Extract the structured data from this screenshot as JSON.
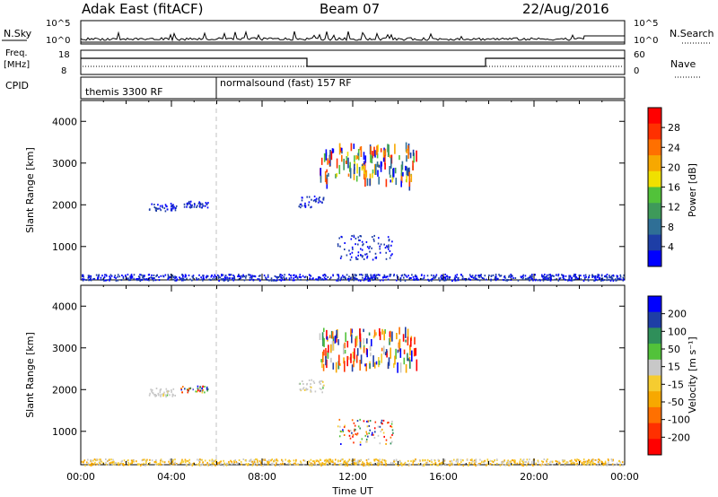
{
  "header": {
    "site_title": "Adak East (fitACF)",
    "beam": "Beam 07",
    "date": "22/Aug/2016"
  },
  "left_labels": {
    "nsky": "N.Sky",
    "freq": "Freq.",
    "freq_unit": "[MHz]",
    "cpid": "CPID"
  },
  "right_labels": {
    "nsearch": "N.Search",
    "nave": "Nave"
  },
  "noise_panel": {
    "yticks_left": [
      "10^5",
      "10^0"
    ],
    "yticks_right": [
      "10^5",
      "10^0"
    ]
  },
  "freq_panel": {
    "yticks_left": [
      "18",
      "8"
    ],
    "yticks_right": [
      "60",
      "0"
    ]
  },
  "cpid_panel": {
    "segments": [
      {
        "label": "themis 3300 RF",
        "start_hour": 0.0,
        "end_hour": 6.0
      },
      {
        "label": "normalsound (fast) 157 RF",
        "start_hour": 6.0,
        "end_hour": 24.0
      }
    ]
  },
  "colors": {
    "power_scale": [
      "#0000ff",
      "#1e3ea6",
      "#2f6f96",
      "#3e9a5a",
      "#52c23a",
      "#f0e000",
      "#f7a800",
      "#ff7000",
      "#ff3000",
      "#ff0000"
    ],
    "velocity_scale": [
      "#ff0000",
      "#ff3000",
      "#ff7000",
      "#f7a800",
      "#f5cc30",
      "#c8c8c8",
      "#52c23a",
      "#2f8f5a",
      "#1e3ea6",
      "#0000ff"
    ]
  },
  "chart_data": [
    {
      "type": "heatmap",
      "panel": "power",
      "xlabel": "",
      "ylabel": "Slant Range [km]",
      "ylim": [
        200,
        4500
      ],
      "yticks": [
        "1000",
        "2000",
        "3000",
        "4000"
      ],
      "xlim": [
        0,
        24
      ],
      "colorbar": {
        "label": "Power [dB]",
        "ticks": [
          "28",
          "24",
          "20",
          "16",
          "12",
          "8",
          "4"
        ]
      },
      "regions": [
        {
          "hours": [
            3.0,
            4.2
          ],
          "range_km": [
            1850,
            2050
          ],
          "level": "low"
        },
        {
          "hours": [
            4.4,
            5.6
          ],
          "range_km": [
            1950,
            2100
          ],
          "level": "low"
        },
        {
          "hours": [
            9.6,
            10.7
          ],
          "range_km": [
            1950,
            2250
          ],
          "level": "low"
        },
        {
          "hours": [
            10.5,
            14.8
          ],
          "range_km": [
            2600,
            3500
          ],
          "level": "mixed"
        },
        {
          "hours": [
            11.3,
            13.8
          ],
          "range_km": [
            700,
            1300
          ],
          "level": "low"
        },
        {
          "hours": [
            0.0,
            24.0
          ],
          "range_km": [
            200,
            350
          ],
          "level": "low"
        }
      ]
    },
    {
      "type": "heatmap",
      "panel": "velocity",
      "xlabel": "Time UT",
      "ylabel": "Slant Range [km]",
      "ylim": [
        200,
        4500
      ],
      "yticks": [
        "1000",
        "2000",
        "3000",
        "4000"
      ],
      "xlim": [
        0,
        24
      ],
      "xticks": [
        "00:00",
        "04:00",
        "08:00",
        "12:00",
        "16:00",
        "20:00",
        "00:00"
      ],
      "colorbar": {
        "label": "Velocity [m s⁻¹]",
        "ticks": [
          "200",
          "100",
          "50",
          "15",
          "-15",
          "-50",
          "-100",
          "-200"
        ]
      },
      "regions": [
        {
          "hours": [
            3.0,
            4.2
          ],
          "range_km": [
            1850,
            2050
          ],
          "level": "near-zero"
        },
        {
          "hours": [
            4.4,
            5.6
          ],
          "range_km": [
            1950,
            2100
          ],
          "level": "mixed"
        },
        {
          "hours": [
            9.6,
            10.7
          ],
          "range_km": [
            1950,
            2250
          ],
          "level": "near-zero"
        },
        {
          "hours": [
            10.5,
            14.8
          ],
          "range_km": [
            2600,
            3500
          ],
          "level": "mixed"
        },
        {
          "hours": [
            11.3,
            13.8
          ],
          "range_km": [
            700,
            1300
          ],
          "level": "mixed"
        },
        {
          "hours": [
            0.0,
            24.0
          ],
          "range_km": [
            200,
            350
          ],
          "level": "negative"
        }
      ]
    }
  ]
}
